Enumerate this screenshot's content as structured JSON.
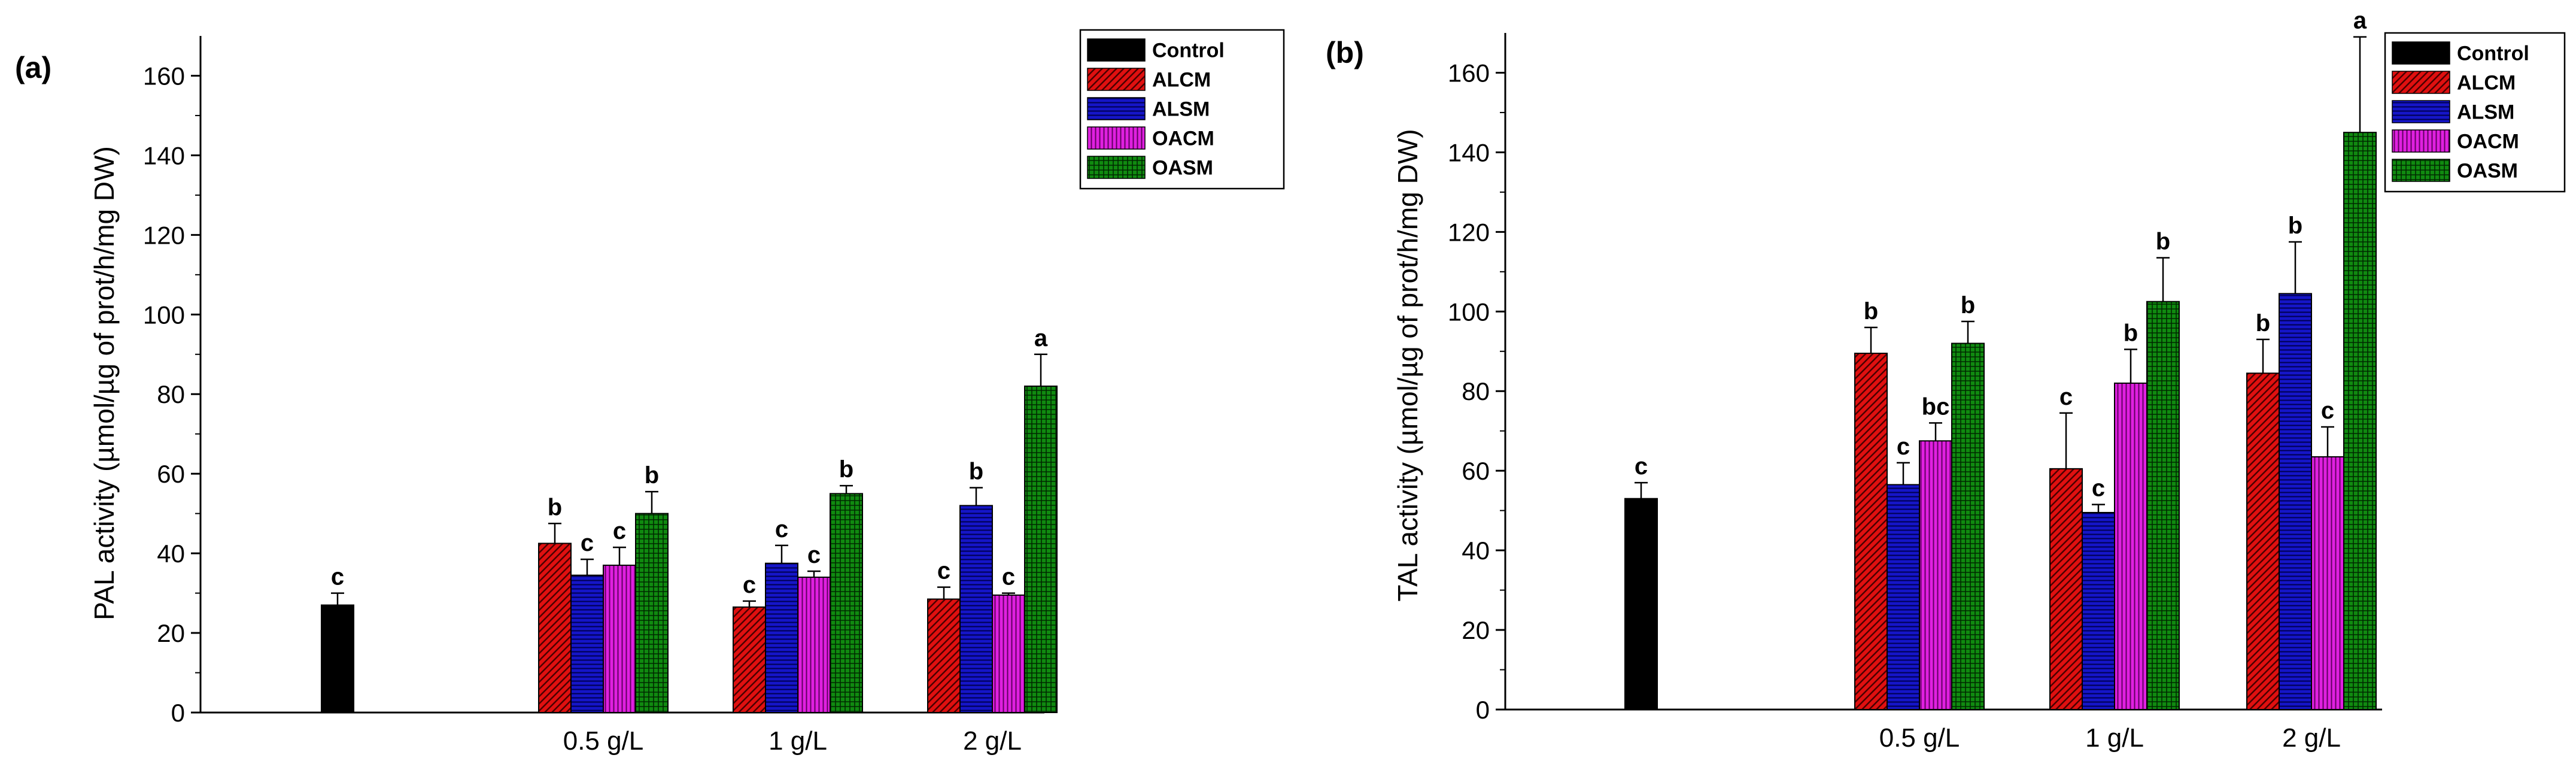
{
  "figure": {
    "panels": [
      "(a)",
      "(b)"
    ]
  },
  "colors": {
    "Control": "#000000",
    "ALCM": "#e01010",
    "ALSM": "#1515c8",
    "OACM": "#e020e0",
    "OASM": "#108a10",
    "axis": "#000000"
  },
  "chart_data": [
    {
      "type": "bar",
      "panel_label": "(a)",
      "title": "",
      "xlabel": "",
      "ylabel": "PAL activity (µmol/µg of prot/h/mg DW)",
      "ylim": [
        0,
        170
      ],
      "yticks": [
        0,
        20,
        40,
        60,
        80,
        100,
        120,
        140,
        160
      ],
      "legend_position": "top-right",
      "legend": [
        "Control",
        "ALCM",
        "ALSM",
        "OACM",
        "OASM"
      ],
      "control": {
        "name": "Control",
        "value": 27,
        "error": 3,
        "letter": "c"
      },
      "categories": [
        "0.5 g/L",
        "1 g/L",
        "2 g/L"
      ],
      "series": [
        {
          "name": "ALCM",
          "values": [
            42.5,
            26.5,
            28.5
          ],
          "errors": [
            5,
            1.5,
            3
          ],
          "letters": [
            "b",
            "c",
            "c"
          ]
        },
        {
          "name": "ALSM",
          "values": [
            34.5,
            37.5,
            52
          ],
          "errors": [
            4,
            4.5,
            4.5
          ],
          "letters": [
            "c",
            "c",
            "b"
          ]
        },
        {
          "name": "OACM",
          "values": [
            37,
            34,
            29.5
          ],
          "errors": [
            4.5,
            1.5,
            0.5
          ],
          "letters": [
            "c",
            "c",
            "c"
          ]
        },
        {
          "name": "OASM",
          "values": [
            50,
            55,
            82
          ],
          "errors": [
            5.5,
            2,
            8
          ],
          "letters": [
            "b",
            "b",
            "a"
          ]
        }
      ]
    },
    {
      "type": "bar",
      "panel_label": "(b)",
      "title": "",
      "xlabel": "",
      "ylabel": "TAL activity (µmol/µg of prot/h/mg DW)",
      "ylim": [
        0,
        170
      ],
      "yticks": [
        0,
        20,
        40,
        60,
        80,
        100,
        120,
        140,
        160
      ],
      "legend_position": "top-right",
      "legend": [
        "Control",
        "ALCM",
        "ALSM",
        "OACM",
        "OASM"
      ],
      "control": {
        "name": "Control",
        "value": 53,
        "error": 4,
        "letter": "c"
      },
      "categories": [
        "0.5 g/L",
        "1 g/L",
        "2 g/L"
      ],
      "series": [
        {
          "name": "ALCM",
          "values": [
            89.5,
            60.5,
            84.5
          ],
          "errors": [
            6.5,
            14,
            8.5
          ],
          "letters": [
            "b",
            "c",
            "b"
          ]
        },
        {
          "name": "ALSM",
          "values": [
            56.5,
            49.5,
            104.5
          ],
          "errors": [
            5.5,
            2,
            13
          ],
          "letters": [
            "c",
            "c",
            "b"
          ]
        },
        {
          "name": "OACM",
          "values": [
            67.5,
            82,
            63.5
          ],
          "errors": [
            4.5,
            8.5,
            7.5
          ],
          "letters": [
            "bc",
            "b",
            "c"
          ]
        },
        {
          "name": "OASM",
          "values": [
            92,
            102.5,
            145
          ],
          "errors": [
            5.5,
            11,
            24
          ],
          "letters": [
            "b",
            "b",
            "a"
          ]
        }
      ]
    }
  ]
}
